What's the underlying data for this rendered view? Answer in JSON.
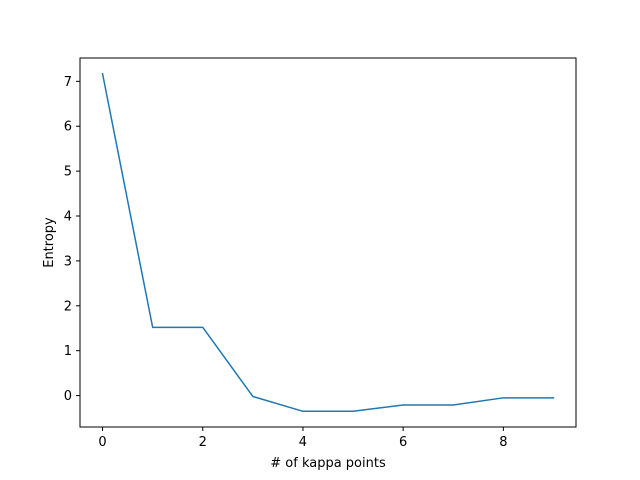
{
  "chart_data": {
    "type": "line",
    "title": "",
    "xlabel": "# of kappa points",
    "ylabel": "Entropy",
    "x": [
      0,
      1,
      2,
      3,
      4,
      5,
      6,
      7,
      8,
      9
    ],
    "series": [
      {
        "values": [
          7.17,
          1.52,
          1.52,
          -0.02,
          -0.35,
          -0.35,
          -0.21,
          -0.21,
          -0.05,
          -0.05
        ],
        "color": "#1f77b4"
      }
    ],
    "xlim": [
      -0.45,
      9.45
    ],
    "ylim": [
      -0.7,
      7.52
    ],
    "xticks": [
      0,
      2,
      4,
      6,
      8
    ],
    "yticks": [
      0,
      1,
      2,
      3,
      4,
      5,
      6,
      7
    ],
    "grid": false
  }
}
